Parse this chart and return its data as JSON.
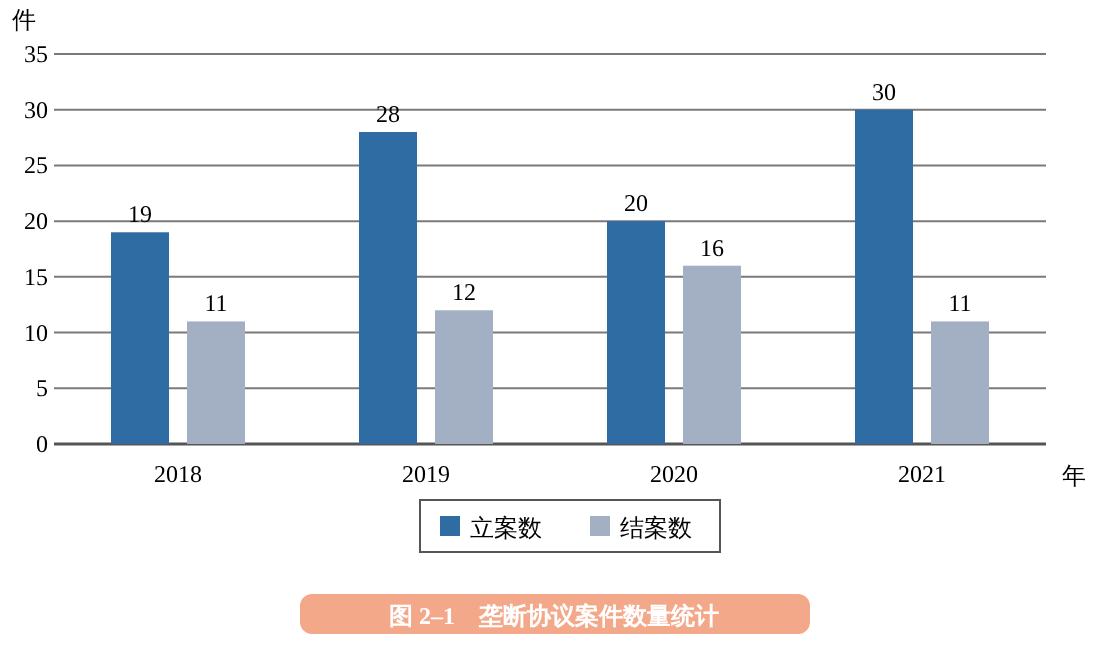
{
  "chart_data": {
    "type": "bar",
    "title": "图 2–1　垄断协议案件数量统计",
    "ylabel": "件",
    "xlabel": "年",
    "categories": [
      "2018",
      "2019",
      "2020",
      "2021"
    ],
    "series": [
      {
        "name": "立案数",
        "color": "#2f6ca3",
        "values": [
          19,
          28,
          20,
          30
        ]
      },
      {
        "name": "结案数",
        "color": "#a3afc2",
        "values": [
          11,
          12,
          16,
          11
        ]
      }
    ],
    "ylim": [
      0,
      35
    ],
    "yticks": [
      0,
      5,
      10,
      15,
      20,
      25,
      30,
      35
    ],
    "grid": "y",
    "legend": "bottom",
    "data_labels": true
  }
}
